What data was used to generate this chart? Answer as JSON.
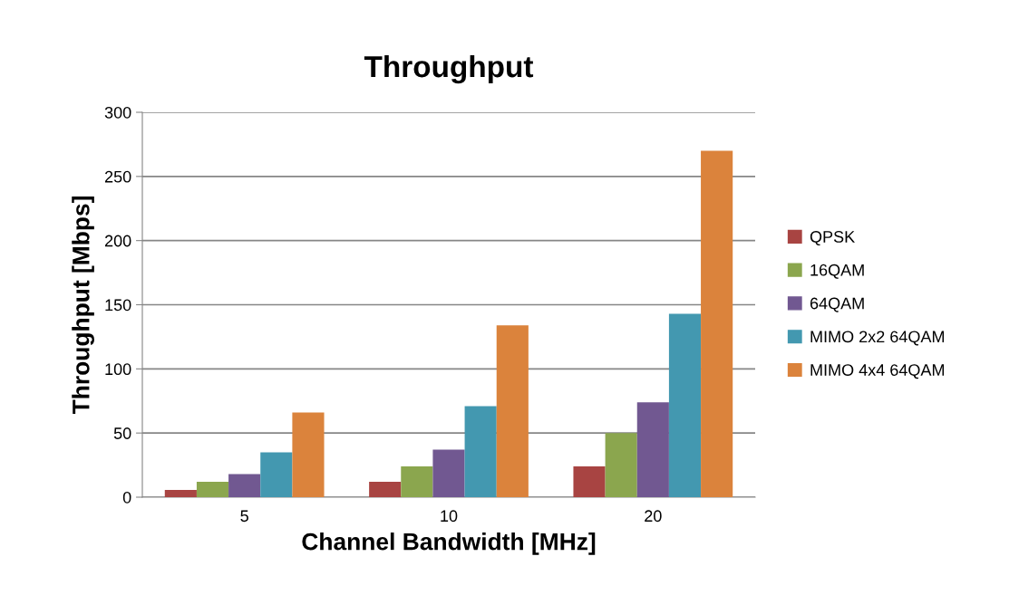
{
  "chart_data": {
    "type": "bar",
    "title": "Throughput",
    "xlabel": "Channel Bandwidth [MHz]",
    "ylabel": "Throughput [Mbps]",
    "categories": [
      "5",
      "10",
      "20"
    ],
    "series": [
      {
        "name": "QPSK",
        "color": "#a84442",
        "values": [
          5.6,
          12,
          24
        ]
      },
      {
        "name": "16QAM",
        "color": "#8ba64e",
        "values": [
          12,
          24,
          50
        ]
      },
      {
        "name": "64QAM",
        "color": "#715891",
        "values": [
          18,
          37,
          74
        ]
      },
      {
        "name": "MIMO 2x2 64QAM",
        "color": "#4398b0",
        "values": [
          35,
          71,
          143
        ]
      },
      {
        "name": "MIMO 4x4 64QAM",
        "color": "#db833c",
        "values": [
          66,
          134,
          270
        ]
      }
    ],
    "ylim": [
      0,
      300
    ],
    "yticks": [
      0,
      50,
      100,
      150,
      200,
      250,
      300
    ],
    "grid": "y",
    "legend": "right"
  }
}
